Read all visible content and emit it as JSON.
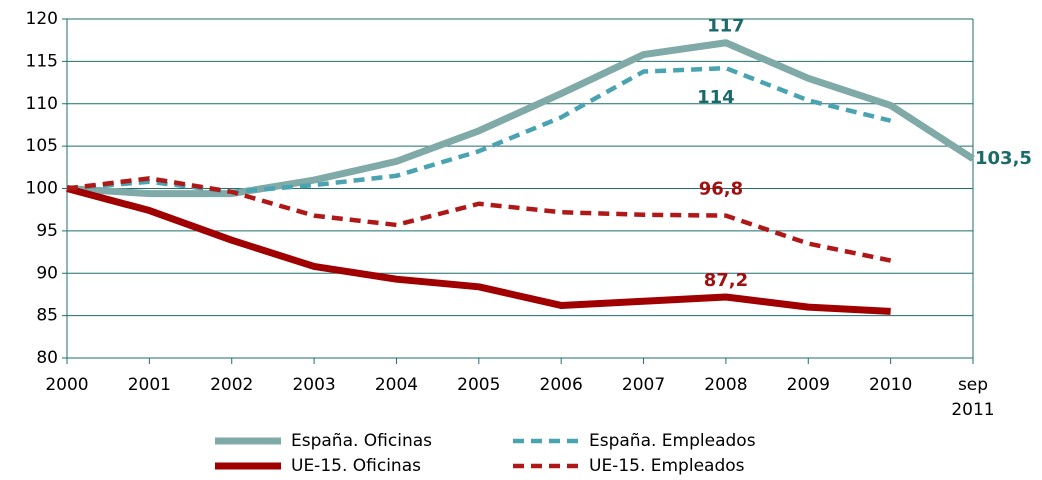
{
  "chart_data": {
    "type": "line",
    "categories": [
      "2000",
      "2001",
      "2002",
      "2003",
      "2004",
      "2005",
      "2006",
      "2007",
      "2008",
      "2009",
      "2010",
      "sep 2011"
    ],
    "ylim": [
      80,
      120
    ],
    "yticks": [
      80,
      85,
      90,
      95,
      100,
      105,
      110,
      115,
      120
    ],
    "grid": true,
    "legend": "bottom",
    "series": [
      {
        "name": "España. Oficinas",
        "color": "#7faaa7",
        "line_style": "solid",
        "label_color": "#1b6a6a",
        "values": [
          100,
          99.4,
          99.4,
          101,
          103.2,
          106.8,
          111.2,
          115.8,
          117.2,
          113,
          109.8,
          103.5
        ],
        "value_labels": [
          null,
          null,
          null,
          null,
          null,
          null,
          null,
          null,
          "117",
          null,
          null,
          "103,5"
        ]
      },
      {
        "name": "España. Empleados",
        "color": "#4aa3b1",
        "line_style": "dashed",
        "label_color": "#1b6a6a",
        "values": [
          100,
          100.8,
          99.6,
          100.4,
          101.5,
          104.4,
          108.4,
          113.8,
          114.2,
          110.4,
          108,
          null
        ],
        "value_labels": [
          null,
          null,
          null,
          null,
          null,
          null,
          null,
          null,
          "114",
          null,
          null,
          null
        ]
      },
      {
        "name": "UE-15. Oficinas",
        "color": "#a00000",
        "line_style": "solid",
        "label_color": "#a01010",
        "values": [
          100,
          97.4,
          93.9,
          90.8,
          89.3,
          88.4,
          86.2,
          86.7,
          87.2,
          86,
          85.5,
          null
        ],
        "value_labels": [
          null,
          null,
          null,
          null,
          null,
          null,
          null,
          null,
          "87,2",
          null,
          null,
          null
        ]
      },
      {
        "name": "UE-15. Empleados",
        "color": "#b01818",
        "line_style": "dashed",
        "label_color": "#a01010",
        "values": [
          100,
          101.2,
          99.6,
          96.8,
          95.7,
          98.2,
          97.2,
          96.9,
          96.8,
          93.5,
          91.5,
          null
        ],
        "value_labels": [
          null,
          null,
          null,
          null,
          null,
          null,
          null,
          null,
          "96,8",
          null,
          null,
          null
        ]
      }
    ]
  }
}
